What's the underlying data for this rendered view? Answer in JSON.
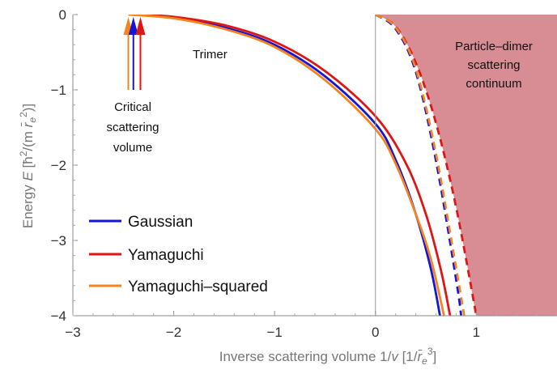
{
  "chart_data": {
    "type": "line",
    "xlabel": "Inverse scattering volume 1/v  [1/r̄e³]",
    "ylabel": "Energy E   [ħ²/(m r̄e²)]",
    "xlim": [
      -3,
      1.8
    ],
    "ylim": [
      -4,
      0
    ],
    "xticks": [
      "−3",
      "−2",
      "−1",
      "0",
      "1"
    ],
    "yticks": [
      "0",
      "−1",
      "−2",
      "−3",
      "−4"
    ],
    "grid": false,
    "legend_position": "bottom-left",
    "colors": {
      "gaussian": "#1515d6",
      "yamaguchi": "#e01515",
      "yamaguchi_squared": "#f5841f",
      "continuum": "#d88c94",
      "zero_line": "#999999"
    },
    "series": [
      {
        "name": "Gaussian",
        "kind": "trimer",
        "x": [
          -2.42,
          -2.0,
          -1.5,
          -1.0,
          -0.5,
          0.0,
          0.2,
          0.4,
          0.55,
          0.64
        ],
        "y": [
          0,
          -0.04,
          -0.17,
          -0.4,
          -0.82,
          -1.45,
          -1.93,
          -2.65,
          -3.38,
          -4.0
        ]
      },
      {
        "name": "Yamaguchi",
        "kind": "trimer",
        "x": [
          -2.36,
          -2.0,
          -1.5,
          -1.0,
          -0.5,
          0.0,
          0.3,
          0.5,
          0.65,
          0.74
        ],
        "y": [
          0,
          -0.03,
          -0.14,
          -0.36,
          -0.75,
          -1.35,
          -1.97,
          -2.65,
          -3.4,
          -4.0
        ]
      },
      {
        "name": "Yamaguchi-squared",
        "kind": "trimer",
        "x": [
          -2.45,
          -2.0,
          -1.5,
          -1.0,
          -0.5,
          0.0,
          0.2,
          0.4,
          0.55,
          0.68
        ],
        "y": [
          0,
          -0.05,
          -0.19,
          -0.43,
          -0.87,
          -1.52,
          -1.98,
          -2.65,
          -3.25,
          -4.0
        ]
      },
      {
        "name": "Gaussian",
        "kind": "threshold",
        "x": [
          0,
          0.2,
          0.4,
          0.6,
          0.8,
          0.85
        ],
        "y": [
          0,
          -0.19,
          -0.76,
          -1.94,
          -3.52,
          -4.0
        ]
      },
      {
        "name": "Yamaguchi",
        "kind": "threshold",
        "x": [
          0,
          0.2,
          0.4,
          0.6,
          0.8,
          1.0
        ],
        "y": [
          0,
          -0.16,
          -0.64,
          -1.44,
          -2.56,
          -4.0
        ]
      },
      {
        "name": "Yamaguchi-squared",
        "kind": "threshold",
        "x": [
          0,
          0.2,
          0.4,
          0.6,
          0.8,
          0.88
        ],
        "y": [
          0,
          -0.17,
          -0.72,
          -1.85,
          -3.37,
          -4.0
        ]
      }
    ],
    "continuum_boundary": {
      "x": [
        0,
        0.2,
        0.4,
        0.6,
        0.8,
        1.0
      ],
      "y": [
        0,
        -0.16,
        -0.64,
        -1.44,
        -2.56,
        -4.0
      ]
    },
    "critical_arrows": [
      {
        "series": "Yamaguchi-squared",
        "x": -2.45
      },
      {
        "series": "Gaussian",
        "x": -2.4
      },
      {
        "series": "Yamaguchi",
        "x": -2.33
      }
    ],
    "annotations": {
      "trimer": "Trimer",
      "critical": [
        "Critical",
        "scattering",
        "volume"
      ],
      "continuum": [
        "Particle–dimer",
        "scattering",
        "continuum"
      ]
    },
    "legend": [
      "Gaussian",
      "Yamaguchi",
      "Yamaguchi–squared"
    ]
  }
}
